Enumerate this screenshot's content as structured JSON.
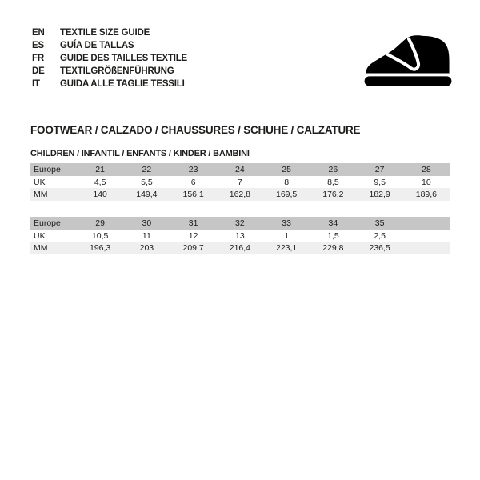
{
  "header": {
    "languages": [
      {
        "code": "EN",
        "label": "TEXTILE SIZE GUIDE"
      },
      {
        "code": "ES",
        "label": "GUÍA DE TALLAS"
      },
      {
        "code": "FR",
        "label": "GUIDE DES TAILLES TEXTILE"
      },
      {
        "code": "DE",
        "label": "TEXTILGRÖßENFÜHRUNG"
      },
      {
        "code": "IT",
        "label": "GUIDA ALLE TAGLIE TESSILI"
      }
    ],
    "logo_icon": "kids-shoe-icon"
  },
  "section": {
    "title": "FOOTWEAR / CALZADO / CHAUSSURES / SCHUHE / CALZATURE",
    "subtitle": "CHILDREN / INFANTIL / ENFANTS / KINDER / BAMBINI"
  },
  "tables": [
    {
      "rows": [
        {
          "label": "Europe",
          "values": [
            "21",
            "22",
            "23",
            "24",
            "25",
            "26",
            "27",
            "28"
          ]
        },
        {
          "label": "UK",
          "values": [
            "4,5",
            "5,5",
            "6",
            "7",
            "8",
            "8,5",
            "9,5",
            "10"
          ]
        },
        {
          "label": "MM",
          "values": [
            "140",
            "149,4",
            "156,1",
            "162,8",
            "169,5",
            "176,2",
            "182,9",
            "189,6"
          ]
        }
      ]
    },
    {
      "rows": [
        {
          "label": "Europe",
          "values": [
            "29",
            "30",
            "31",
            "32",
            "33",
            "34",
            "35",
            ""
          ]
        },
        {
          "label": "UK",
          "values": [
            "10,5",
            "11",
            "12",
            "13",
            "1",
            "1,5",
            "2,5",
            ""
          ]
        },
        {
          "label": "MM",
          "values": [
            "196,3",
            "203",
            "209,7",
            "216,4",
            "223,1",
            "229,8",
            "236,5",
            ""
          ]
        }
      ]
    }
  ],
  "colors": {
    "text": "#1d1d1b",
    "table_header_row_bg": "#c6c6c6",
    "table_mm_row_bg": "#efefef",
    "table_uk_row_bg": "#ffffff",
    "logo": "#000000"
  }
}
